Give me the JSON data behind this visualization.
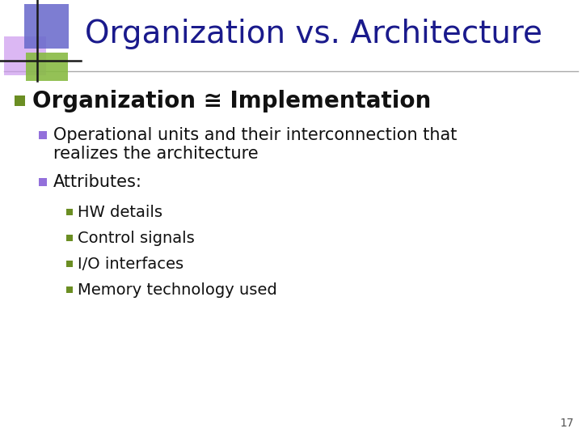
{
  "title": "Organization vs. Architecture",
  "title_color": "#1a1a8c",
  "title_fontsize": 28,
  "bg_color": "#ffffff",
  "slide_number": "17",
  "bullet1_color": "#6b8e23",
  "bullet2_color": "#9370db",
  "bullet3_color": "#6b8e23",
  "level1_bullet": "Organization ≅ Implementation",
  "level2_bullet1_line1": "Operational units and their interconnection that",
  "level2_bullet1_line2": "realizes the architecture",
  "level2_bullet2": "Attributes:",
  "level3_bullets": [
    "HW details",
    "Control signals",
    "I/O interfaces",
    "Memory technology used"
  ],
  "header_line_color": "#aaaaaa",
  "deco_blue": "#6b6bcc",
  "deco_purple": "#cc99ee",
  "deco_green": "#88bb44",
  "text_color": "#111111"
}
